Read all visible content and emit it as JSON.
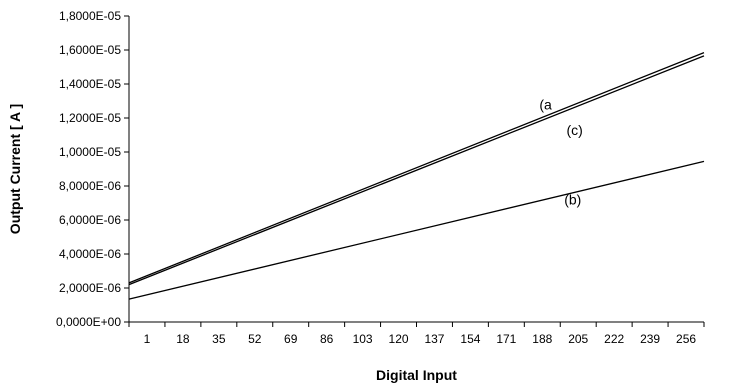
{
  "chart_data": {
    "type": "line",
    "xlabel": "Digital Input",
    "ylabel": "Output Current [ A ]",
    "x_tick_labels": [
      "1",
      "18",
      "35",
      "52",
      "69",
      "86",
      "103",
      "120",
      "137",
      "154",
      "171",
      "188",
      "205",
      "222",
      "239",
      "256"
    ],
    "y_tick_labels": [
      "0,0000E+00",
      "2,0000E-06",
      "4,0000E-06",
      "6,0000E-06",
      "8,0000E-06",
      "1,0000E-05",
      "1,2000E-05",
      "1,4000E-05",
      "1,6000E-05",
      "1,8000E-05"
    ],
    "xlim": [
      1,
      256
    ],
    "ylim": [
      0,
      1.8e-05
    ],
    "grid": false,
    "legend": "none",
    "series": [
      {
        "name": "(a",
        "x": [
          1,
          256
        ],
        "values": [
          2.3e-06,
          1.585e-05
        ]
      },
      {
        "name": "(c)",
        "x": [
          1,
          256
        ],
        "values": [
          2.2e-06,
          1.565e-05
        ]
      },
      {
        "name": "(b)",
        "x": [
          1,
          256
        ],
        "values": [
          1.35e-06,
          9.45e-06
        ]
      }
    ],
    "annotations": [
      {
        "text": "(a",
        "x": 183,
        "y": 1.25e-05
      },
      {
        "text": "(c)",
        "x": 195,
        "y": 1.1e-05
      },
      {
        "text": "(b)",
        "x": 194,
        "y": 6.9e-06
      }
    ]
  }
}
